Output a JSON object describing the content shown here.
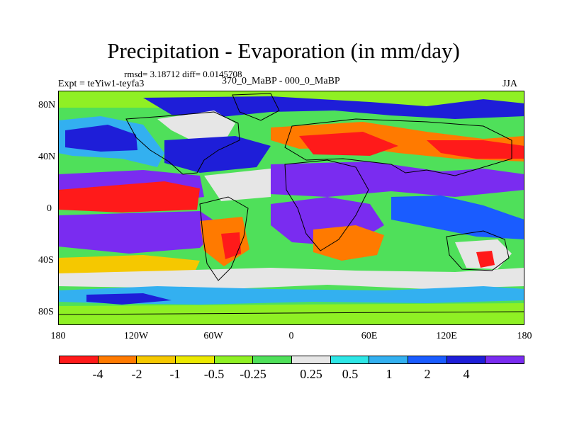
{
  "title": "Precipitation - Evaporation (in mm/day)",
  "stats": "rmsd= 3.18712 diff= 0.0145708",
  "expt": "Expt = teYiw1-teyfa3",
  "case": "370_0_MaBP - 000_0_MaBP",
  "season": "JJA",
  "lat_labels": [
    "80N",
    "40N",
    "0",
    "40S",
    "80S"
  ],
  "lon_labels": [
    "180",
    "120W",
    "60W",
    "0",
    "60E",
    "120E",
    "180"
  ],
  "colorbar": {
    "colors": [
      "#ff1a1a",
      "#ff7a00",
      "#f5c800",
      "#ebe800",
      "#8ff024",
      "#4fe05a",
      "#e6e6e6",
      "#2ee6e6",
      "#33b0f0",
      "#1a5cff",
      "#1e1ed8",
      "#7a2cf0"
    ],
    "labels": [
      "-4",
      "-2",
      "-1",
      "-0.5",
      "-0.25",
      "0.25",
      "0.5",
      "1",
      "2",
      "4"
    ]
  },
  "map_colors": {
    "strong_negative": "#ff1a1a",
    "negative": "#ff7a00",
    "weak_negative": "#f5c800",
    "slight_negative": "#ebe800",
    "light_green": "#8ff024",
    "green": "#4fe05a",
    "near_zero": "#e6e6e6",
    "cyan": "#2ee6e6",
    "light_blue": "#33b0f0",
    "blue": "#1a5cff",
    "dark_blue": "#1e1ed8",
    "purple": "#7a2cf0"
  }
}
